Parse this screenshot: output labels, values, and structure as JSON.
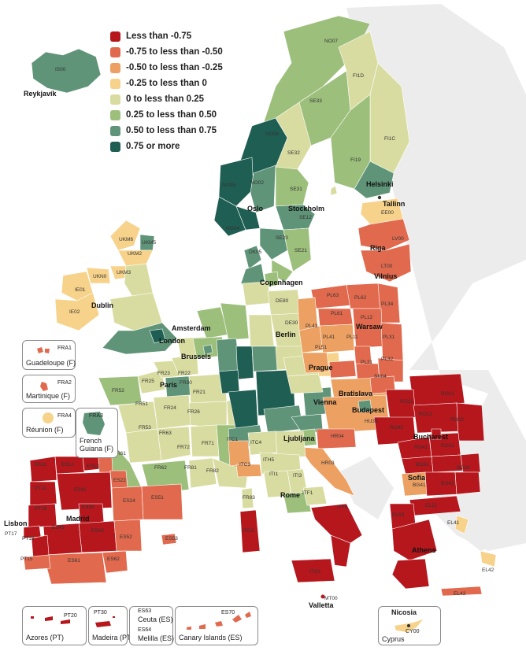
{
  "legend": [
    {
      "label": "Less than -0.75",
      "color": "#b5171d"
    },
    {
      "label": "-0.75 to less than -0.50",
      "color": "#e16a4e"
    },
    {
      "label": "-0.50 to less than -0.25",
      "color": "#eca062"
    },
    {
      "label": "-0.25 to less than 0",
      "color": "#f7d28a"
    },
    {
      "label": "0 to less than 0.25",
      "color": "#d9dca0"
    },
    {
      "label": "0.25 to less than 0.50",
      "color": "#9dbf7c"
    },
    {
      "label": "0.50 to less than 0.75",
      "color": "#5f9478"
    },
    {
      "label": "0.75 or more",
      "color": "#1f5e52"
    }
  ],
  "cities": {
    "reykjavik": "Reykjavík",
    "helsinki": "Helsinki",
    "tallinn": "Tallinn",
    "oslo": "Oslo",
    "stockholm": "Stockholm",
    "riga": "Riga",
    "vilnius": "Vilnius",
    "copenhagen": "Copenhagen",
    "dublin": "Dublin",
    "amsterdam": "Amsterdam",
    "london": "London",
    "berlin": "Berlin",
    "warsaw": "Warsaw",
    "brussels": "Brussels",
    "prague": "Prague",
    "paris": "Paris",
    "bratislava": "Bratislava",
    "vienna": "Vienna",
    "budapest": "Budapest",
    "ljubljana": "Ljubljana",
    "bucharest": "Bucharest",
    "sofia": "Sofia",
    "rome": "Rome",
    "madrid": "Madrid",
    "lisbon": "Lisbon",
    "athens": "Athens",
    "valletta": "Valletta",
    "nicosia": "Nicosia"
  },
  "codes": {
    "is00": "IS00",
    "no07": "NO07",
    "fi1d": "FI1D",
    "se33": "SE33",
    "fi1c": "FI1C",
    "fi19": "FI19",
    "se32": "SE32",
    "no06": "NO06",
    "se31": "SE31",
    "no05": "NO05",
    "no02": "NO02",
    "no04": "NO04",
    "se12": "SE12",
    "se23": "SE23",
    "se21": "SE21",
    "ee00": "EE00",
    "lv00": "LV00",
    "lt00": "LT00",
    "dk05": "DK05",
    "ukm6": "UKM6",
    "ukm5": "UKM5",
    "ukm2": "UKM2",
    "ukm3": "UKM3",
    "ukn0": "UKN0",
    "ie01": "IE01",
    "ie02": "IE02",
    "pl63": "PL63",
    "pl62": "PL62",
    "pl34": "PL34",
    "pl61": "PL61",
    "pl12": "PL12",
    "pl43": "PL43",
    "pl11": "PL11",
    "pl31": "PL31",
    "pl41": "PL41",
    "pl51": "PL51",
    "pl21": "PL21",
    "pl32": "PL32",
    "de80": "DE80",
    "de30": "DE30",
    "sk04": "SK04",
    "ro21": "RO21",
    "ro11": "RO11",
    "ro12": "RO12",
    "ro42": "RO42",
    "ro22": "RO22",
    "ro41": "RO41",
    "ro31": "RO31",
    "bg31": "BG31",
    "bg34": "BG34",
    "bg41": "BG41",
    "bg42": "BG42",
    "hu33": "HU33",
    "hr04": "HR04",
    "hr03": "HR03",
    "fr23": "FR23",
    "fr25": "FR25",
    "fr22": "FR22",
    "fr30": "FR30",
    "fr52": "FR52",
    "fr51": "FR51",
    "fr24": "FR24",
    "fr26": "FR26",
    "fr21": "FR21",
    "fr53": "FR53",
    "fr63": "FR63",
    "fr72": "FR72",
    "fr71": "FR71",
    "fr61": "FR61",
    "fr62": "FR62",
    "fr81": "FR81",
    "fr82": "FR82",
    "fr83": "FR83",
    "itc1": "ITC1",
    "itc3": "ITC3",
    "itc4": "ITC4",
    "ith5": "ITH5",
    "iti1": "ITI1",
    "iti3": "ITI3",
    "itf1": "ITF1",
    "itf6": "ITF6",
    "itg1": "ITG1",
    "itg2": "ITG2",
    "es11": "ES11",
    "es12": "ES12",
    "es13": "ES13",
    "es22": "ES22",
    "es41": "ES41",
    "es24": "ES24",
    "es51": "ES51",
    "es30": "ES30",
    "es42": "ES42",
    "es43": "ES43",
    "es52": "ES52",
    "es61": "ES61",
    "es62": "ES62",
    "es53": "ES53",
    "pt11": "PT11",
    "pt16": "PT16",
    "pt17": "PT17",
    "pt18": "PT18",
    "pt15": "PT15",
    "el41": "EL41",
    "el42": "EL42",
    "el43": "EL43",
    "el51": "EL51",
    "el53": "EL53",
    "mt00": "MT00",
    "cy00": "CY00",
    "pt20": "PT20",
    "pt30": "PT30",
    "es63": "ES63",
    "es64": "ES64",
    "es70": "ES70",
    "fra1": "FRA1",
    "fra2": "FRA2",
    "fra3": "FRA3",
    "fra4": "FRA4"
  },
  "insets": {
    "guadeloupe": "Guadeloupe (F)",
    "martinique": "Martinique (F)",
    "reunion": "Réunion (F)",
    "guiana": "French Guiana (F)",
    "azores": "Azores (PT)",
    "madeira": "Madeira (PT)",
    "ceuta": "Ceuta (ES)",
    "melilla": "Melilla (ES)",
    "canary": "Canary Islands (ES)",
    "cyprus": "Cyprus"
  }
}
